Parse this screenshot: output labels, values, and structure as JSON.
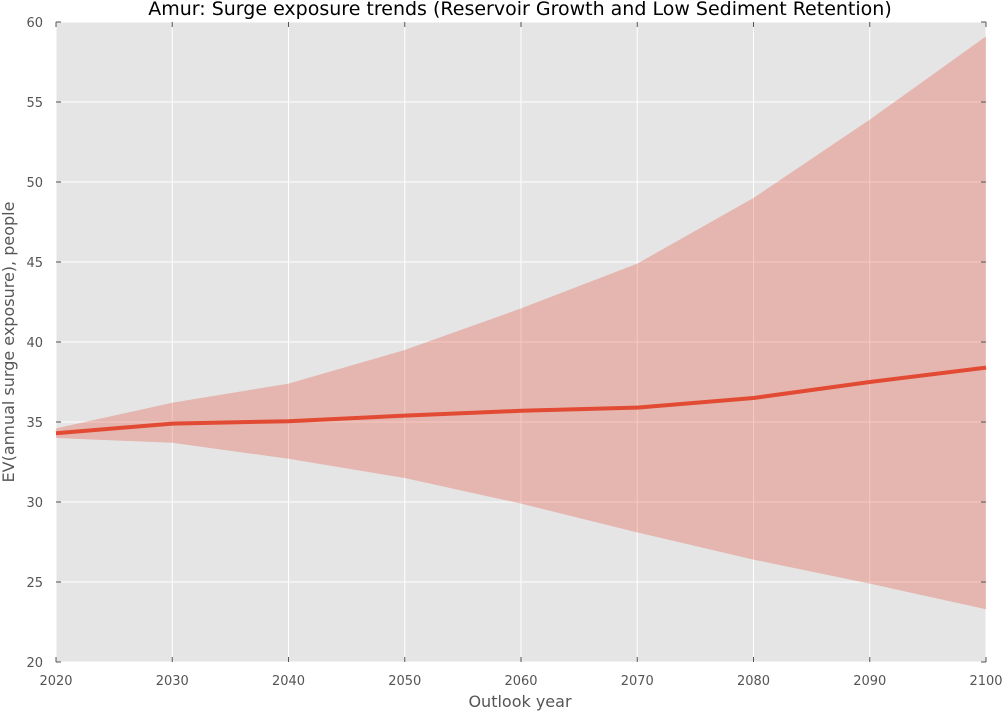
{
  "chart_data": {
    "type": "line",
    "title": "Amur: Surge exposure trends (Reservoir Growth and Low Sediment Retention)",
    "xlabel": "Outlook year",
    "ylabel": "EV(annual surge exposure), people",
    "xlim": [
      2020,
      2100
    ],
    "ylim": [
      20,
      60
    ],
    "x_ticks": [
      2020,
      2030,
      2040,
      2050,
      2060,
      2070,
      2080,
      2090,
      2100
    ],
    "y_ticks": [
      20,
      25,
      30,
      35,
      40,
      45,
      50,
      55,
      60
    ],
    "grid": true,
    "x": [
      2020,
      2030,
      2040,
      2050,
      2060,
      2070,
      2080,
      2090,
      2100
    ],
    "series": [
      {
        "values": [
          34.3,
          34.9,
          35.05,
          35.4,
          35.7,
          35.9,
          36.5,
          37.5,
          38.4
        ],
        "upper": [
          34.6,
          36.2,
          37.4,
          39.5,
          42.1,
          44.9,
          49.0,
          53.9,
          59.1
        ],
        "lower": [
          34.0,
          33.7,
          32.7,
          31.5,
          29.9,
          28.1,
          26.4,
          24.9,
          23.3
        ],
        "line_color": "#e24a33",
        "band_color": "#e24a33"
      }
    ],
    "background_color": "#e5e5e5",
    "grid_color": "#ffffff"
  }
}
